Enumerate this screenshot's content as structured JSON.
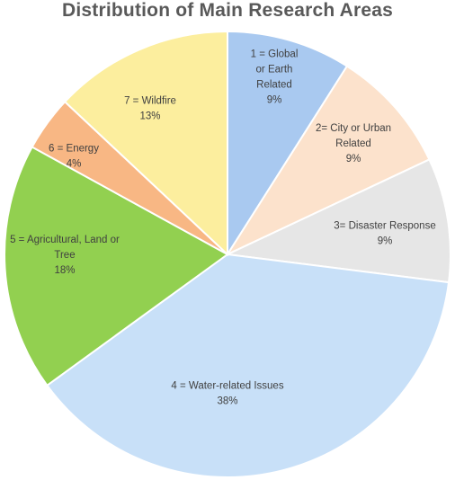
{
  "chart_data": {
    "type": "pie",
    "title": "Distribution of Main Research Areas",
    "slices": [
      {
        "label_lines": [
          "1 = Global",
          "or Earth",
          "Related"
        ],
        "percent_label": "9%",
        "value": 9,
        "color": "#a9c9f0"
      },
      {
        "label_lines": [
          "2= City or Urban",
          "Related"
        ],
        "percent_label": "9%",
        "value": 9,
        "color": "#fce2cc"
      },
      {
        "label_lines": [
          "3= Disaster Response"
        ],
        "percent_label": "9%",
        "value": 9,
        "color": "#e6e6e6"
      },
      {
        "label_lines": [
          "4 = Water-related Issues"
        ],
        "percent_label": "38%",
        "value": 38,
        "color": "#c8e0f8"
      },
      {
        "label_lines": [
          "5 = Agricultural, Land or",
          "Tree"
        ],
        "percent_label": "18%",
        "value": 18,
        "color": "#92d050"
      },
      {
        "label_lines": [
          "6 = Energy"
        ],
        "percent_label": "4%",
        "value": 4,
        "color": "#f8b784"
      },
      {
        "label_lines": [
          "7 = Wildfire"
        ],
        "percent_label": "13%",
        "value": 13,
        "color": "#fcee9e"
      }
    ]
  }
}
